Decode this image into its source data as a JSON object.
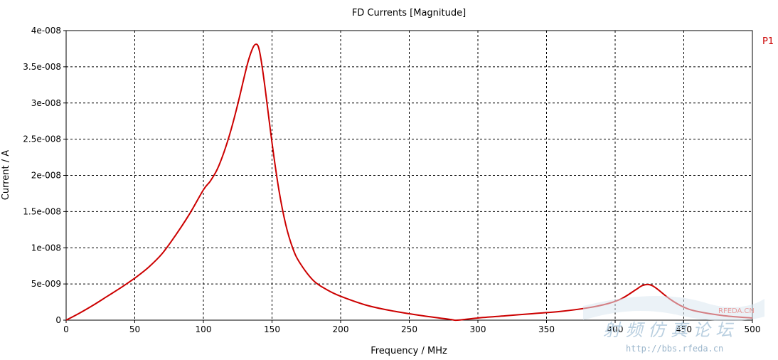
{
  "chart_data": {
    "type": "line",
    "title": "FD Currents [Magnitude]",
    "xlabel": "Frequency / MHz",
    "ylabel": "Current / A",
    "xlim": [
      0,
      500
    ],
    "ylim": [
      0,
      4e-08
    ],
    "xticks": [
      0,
      50,
      100,
      150,
      200,
      250,
      300,
      350,
      400,
      450,
      500
    ],
    "xtick_labels": [
      "0",
      "50",
      "100",
      "150",
      "200",
      "250",
      "300",
      "350",
      "400",
      "450",
      "500"
    ],
    "yticks": [
      0,
      5e-09,
      1e-08,
      1.5e-08,
      2e-08,
      2.5e-08,
      3e-08,
      3.5e-08,
      4e-08
    ],
    "ytick_labels": [
      "0",
      "5e-009",
      "1e-008",
      "1.5e-008",
      "2e-008",
      "2.5e-008",
      "3e-008",
      "3.5e-008",
      "4e-008"
    ],
    "grid": true,
    "legend_position": "right",
    "series": [
      {
        "name": "P1",
        "color": "#cc0000",
        "x": [
          0,
          10,
          20,
          30,
          40,
          50,
          60,
          70,
          80,
          90,
          100,
          105,
          110,
          115,
          120,
          125,
          130,
          133,
          136,
          138,
          140,
          142,
          145,
          150,
          155,
          160,
          165,
          170,
          180,
          190,
          200,
          220,
          240,
          260,
          280,
          285,
          300,
          320,
          340,
          360,
          380,
          395,
          405,
          415,
          420,
          425,
          430,
          440,
          450,
          460,
          480,
          500
        ],
        "y": [
          0,
          1e-09,
          2.1e-09,
          3.3e-09,
          4.5e-09,
          5.8e-09,
          7.3e-09,
          9.2e-09,
          1.18e-08,
          1.47e-08,
          1.8e-08,
          1.92e-08,
          2.08e-08,
          2.32e-08,
          2.62e-08,
          2.98e-08,
          3.38e-08,
          3.6e-08,
          3.76e-08,
          3.81e-08,
          3.78e-08,
          3.6e-08,
          3.2e-08,
          2.45e-08,
          1.8e-08,
          1.32e-08,
          1e-08,
          8e-09,
          5.5e-09,
          4.2e-09,
          3.3e-09,
          2e-09,
          1.2e-09,
          6e-10,
          1e-10,
          0,
          3e-10,
          6e-10,
          9e-10,
          1.2e-09,
          1.7e-09,
          2.3e-09,
          3e-09,
          4.2e-09,
          4.8e-09,
          4.9e-09,
          4.4e-09,
          2.9e-09,
          1.8e-09,
          1.2e-09,
          6e-10,
          3e-10
        ]
      }
    ]
  },
  "watermark": {
    "url": "http://bbs.rfeda.cn",
    "brand": "RFEDA.CN",
    "cn_text": "射 频 仿 真 论 坛"
  }
}
